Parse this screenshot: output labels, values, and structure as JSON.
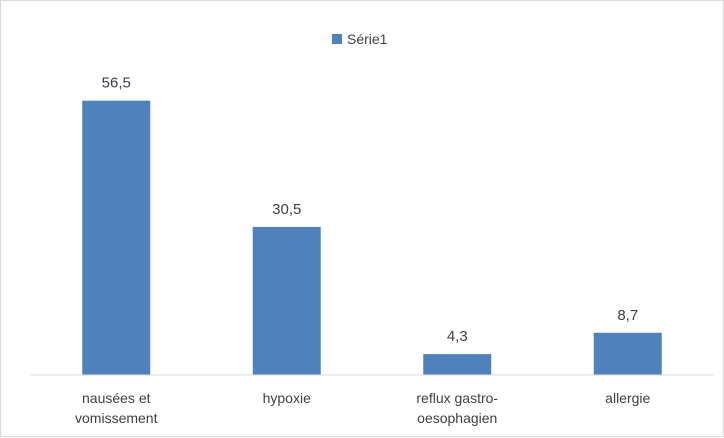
{
  "chart_data": {
    "type": "bar",
    "categories": [
      [
        "nausées et",
        "vomissement"
      ],
      [
        "hypoxie"
      ],
      [
        "reflux gastro-",
        "oesophagien"
      ],
      [
        "allergie"
      ]
    ],
    "series": [
      {
        "name": "Série1",
        "values": [
          56.5,
          30.5,
          4.3,
          8.7
        ],
        "value_labels": [
          "56,5",
          "30,5",
          "4,3",
          "8,7"
        ],
        "color": "#4f81bd"
      }
    ],
    "ylim": [
      0,
      60
    ],
    "grid": false,
    "legend_position": "top-center",
    "title": "",
    "xlabel": "",
    "ylabel": ""
  }
}
